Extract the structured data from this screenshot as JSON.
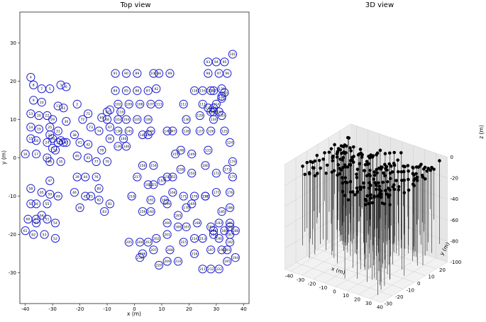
{
  "chart_data": [
    {
      "type": "scatter",
      "title": "Top view",
      "xlabel": "x (m)",
      "ylabel": "y (m)",
      "xlim": [
        -42,
        42
      ],
      "ylim": [
        -38,
        38
      ],
      "xticks": [
        -40,
        -30,
        -20,
        -10,
        0,
        10,
        20,
        30,
        40
      ],
      "yticks": [
        -30,
        -20,
        -10,
        0,
        10,
        20,
        30
      ],
      "marker": "circle-outline",
      "marker_color": "#1f1fd6",
      "points": [
        {
          "id": "1",
          "x": -9,
          "y": 12.5
        },
        {
          "id": "2",
          "x": -21,
          "y": 14
        },
        {
          "id": "3",
          "x": -27,
          "y": 19
        },
        {
          "id": "4",
          "x": -38,
          "y": 21
        },
        {
          "id": "5",
          "x": -31,
          "y": 18
        },
        {
          "id": "6",
          "x": -25,
          "y": 18.5
        },
        {
          "id": "7",
          "x": -34,
          "y": 18
        },
        {
          "id": "8",
          "x": -37,
          "y": 19
        },
        {
          "id": "9",
          "x": -37,
          "y": 15
        },
        {
          "id": "10",
          "x": -34,
          "y": 14.5
        },
        {
          "id": "11",
          "x": -28,
          "y": 13.5
        },
        {
          "id": "12",
          "x": -26,
          "y": 13
        },
        {
          "id": "13",
          "x": -38,
          "y": 11.5
        },
        {
          "id": "14",
          "x": -38,
          "y": 8
        },
        {
          "id": "15",
          "x": -38,
          "y": 5
        },
        {
          "id": "16",
          "x": -40,
          "y": 1
        },
        {
          "id": "17",
          "x": -36,
          "y": 1
        },
        {
          "id": "18",
          "x": -36,
          "y": 4.5
        },
        {
          "id": "19",
          "x": -35,
          "y": 7.5
        },
        {
          "id": "20",
          "x": -35,
          "y": 11
        },
        {
          "id": "21",
          "x": -32,
          "y": 0
        },
        {
          "id": "22",
          "x": -32,
          "y": 11
        },
        {
          "id": "23",
          "x": -31,
          "y": 6
        },
        {
          "id": "24",
          "x": -32,
          "y": 4
        },
        {
          "id": "25",
          "x": -31,
          "y": 8
        },
        {
          "id": "26",
          "x": -31,
          "y": -1
        },
        {
          "id": "27",
          "x": -30,
          "y": 2.5
        },
        {
          "id": "28",
          "x": -30,
          "y": 5
        },
        {
          "id": "29",
          "x": -30,
          "y": 10
        },
        {
          "id": "30",
          "x": -25,
          "y": 9.5
        },
        {
          "id": "31",
          "x": -28,
          "y": 7
        },
        {
          "id": "32",
          "x": -28,
          "y": 4
        },
        {
          "id": "33",
          "x": -29,
          "y": 2
        },
        {
          "id": "34",
          "x": -26,
          "y": 4
        },
        {
          "id": "35",
          "x": -27,
          "y": -1
        },
        {
          "id": "36",
          "x": -27,
          "y": 4.5
        },
        {
          "id": "37",
          "x": -25,
          "y": 4
        },
        {
          "id": "38",
          "x": -22,
          "y": 6
        },
        {
          "id": "39",
          "x": -21,
          "y": -5
        },
        {
          "id": "40",
          "x": -21,
          "y": 0.5
        },
        {
          "id": "41",
          "x": -20,
          "y": 4
        },
        {
          "id": "42",
          "x": -17,
          "y": 3.5
        },
        {
          "id": "43",
          "x": -17,
          "y": 0
        },
        {
          "id": "44",
          "x": -18,
          "y": -5
        },
        {
          "id": "45",
          "x": -18,
          "y": -10
        },
        {
          "id": "46",
          "x": -22,
          "y": -9
        },
        {
          "id": "47",
          "x": -31,
          "y": -6
        },
        {
          "id": "48",
          "x": -20,
          "y": -13
        },
        {
          "id": "49",
          "x": -28,
          "y": -10
        },
        {
          "id": "50",
          "x": -38,
          "y": -12
        },
        {
          "id": "51",
          "x": -32,
          "y": -16
        },
        {
          "id": "52",
          "x": -29,
          "y": -21
        },
        {
          "id": "53",
          "x": -33,
          "y": -20
        },
        {
          "id": "54",
          "x": -29,
          "y": -17
        },
        {
          "id": "55",
          "x": -32,
          "y": -12
        },
        {
          "id": "56",
          "x": -36,
          "y": -12
        },
        {
          "id": "57",
          "x": -36,
          "y": -16
        },
        {
          "id": "58",
          "x": -38,
          "y": -8
        },
        {
          "id": "59",
          "x": -31,
          "y": -9.5
        },
        {
          "id": "60",
          "x": -39,
          "y": -16
        },
        {
          "id": "61",
          "x": -40,
          "y": -19
        },
        {
          "id": "62",
          "x": -37,
          "y": -20
        },
        {
          "id": "63",
          "x": -36,
          "y": -17
        },
        {
          "id": "64",
          "x": -34,
          "y": -15
        },
        {
          "id": "65",
          "x": -34,
          "y": -9
        },
        {
          "id": "66",
          "x": -9,
          "y": 5
        },
        {
          "id": "67",
          "x": -9,
          "y": 8
        },
        {
          "id": "68",
          "x": -10,
          "y": 10
        },
        {
          "id": "69",
          "x": -12,
          "y": 10.5
        },
        {
          "id": "70",
          "x": -10,
          "y": 12
        },
        {
          "id": "71",
          "x": -17,
          "y": 11.5
        },
        {
          "id": "72",
          "x": -19,
          "y": 10
        },
        {
          "id": "73",
          "x": -16,
          "y": 8
        },
        {
          "id": "74",
          "x": -13,
          "y": 7
        },
        {
          "id": "75",
          "x": -16,
          "y": -10
        },
        {
          "id": "76",
          "x": -14,
          "y": -5
        },
        {
          "id": "77",
          "x": -14,
          "y": -1
        },
        {
          "id": "78",
          "x": -12,
          "y": 2
        },
        {
          "id": "79",
          "x": -10,
          "y": -1
        },
        {
          "id": "80",
          "x": -13,
          "y": -8
        },
        {
          "id": "81",
          "x": -9,
          "y": -12
        },
        {
          "id": "82",
          "x": -13,
          "y": -11
        },
        {
          "id": "83",
          "x": -11,
          "y": -14
        },
        {
          "id": "84",
          "x": -7,
          "y": 17.5
        },
        {
          "id": "85",
          "x": -3,
          "y": 17.5
        },
        {
          "id": "86",
          "x": 1,
          "y": 17.5
        },
        {
          "id": "87",
          "x": 5,
          "y": 17.5
        },
        {
          "id": "88",
          "x": 9,
          "y": 22
        },
        {
          "id": "89",
          "x": 1,
          "y": 22
        },
        {
          "id": "90",
          "x": -3,
          "y": 22
        },
        {
          "id": "91",
          "x": -7,
          "y": 22
        },
        {
          "id": "92",
          "x": 8,
          "y": 18
        },
        {
          "id": "93",
          "x": 27,
          "y": 25
        },
        {
          "id": "94",
          "x": 30,
          "y": 25
        },
        {
          "id": "95",
          "x": 33,
          "y": 25
        },
        {
          "id": "96",
          "x": 34,
          "y": 22
        },
        {
          "id": "97",
          "x": 31,
          "y": 22
        },
        {
          "id": "98",
          "x": 27,
          "y": 22
        },
        {
          "id": "99",
          "x": 13,
          "y": 22
        },
        {
          "id": "100",
          "x": 7,
          "y": 22
        },
        {
          "id": "101",
          "x": 36,
          "y": 27
        },
        {
          "id": "102",
          "x": -6,
          "y": 14
        },
        {
          "id": "103",
          "x": -6,
          "y": 10
        },
        {
          "id": "104",
          "x": -3,
          "y": 10
        },
        {
          "id": "105",
          "x": 1,
          "y": 10
        },
        {
          "id": "106",
          "x": 5,
          "y": 10
        },
        {
          "id": "107",
          "x": 6,
          "y": 14
        },
        {
          "id": "108",
          "x": 2,
          "y": 14
        },
        {
          "id": "109",
          "x": -2,
          "y": 14
        },
        {
          "id": "110",
          "x": -5,
          "y": 12
        },
        {
          "id": "111",
          "x": 25,
          "y": 14
        },
        {
          "id": "112",
          "x": 18,
          "y": 14
        },
        {
          "id": "113",
          "x": 9,
          "y": 14
        },
        {
          "id": "114",
          "x": 30,
          "y": 14
        },
        {
          "id": "115",
          "x": 27,
          "y": 13
        },
        {
          "id": "116",
          "x": 25,
          "y": 17.5
        },
        {
          "id": "117",
          "x": 29,
          "y": 17.5
        },
        {
          "id": "118",
          "x": 22,
          "y": 17.5
        },
        {
          "id": "119",
          "x": 28,
          "y": 17.5
        },
        {
          "id": "120",
          "x": 32,
          "y": 18
        },
        {
          "id": "121",
          "x": 32,
          "y": 15.5
        },
        {
          "id": "122",
          "x": 27,
          "y": 2
        },
        {
          "id": "123",
          "x": 32,
          "y": 16
        },
        {
          "id": "124",
          "x": 35,
          "y": 4
        },
        {
          "id": "125",
          "x": 33,
          "y": 7
        },
        {
          "id": "126",
          "x": 28,
          "y": 7
        },
        {
          "id": "127",
          "x": 24,
          "y": 7
        },
        {
          "id": "128",
          "x": 19,
          "y": 7
        },
        {
          "id": "129",
          "x": 24,
          "y": 11
        },
        {
          "id": "130",
          "x": 33,
          "y": 17
        },
        {
          "id": "131",
          "x": 29,
          "y": 13
        },
        {
          "id": "132",
          "x": 31,
          "y": 12
        },
        {
          "id": "133",
          "x": 32,
          "y": 11
        },
        {
          "id": "134",
          "x": 29,
          "y": 10
        },
        {
          "id": "135",
          "x": 29,
          "y": 12
        },
        {
          "id": "136",
          "x": 19,
          "y": 10
        },
        {
          "id": "137",
          "x": 28,
          "y": 12
        },
        {
          "id": "138",
          "x": -6,
          "y": 7
        },
        {
          "id": "139",
          "x": -6,
          "y": 3
        },
        {
          "id": "140",
          "x": -3,
          "y": 3
        },
        {
          "id": "141",
          "x": 3,
          "y": 6
        },
        {
          "id": "142",
          "x": 5,
          "y": 6
        },
        {
          "id": "143",
          "x": 12,
          "y": 7
        },
        {
          "id": "144",
          "x": 6,
          "y": 7
        },
        {
          "id": "145",
          "x": -2,
          "y": 7
        },
        {
          "id": "146",
          "x": -4,
          "y": 5
        },
        {
          "id": "147",
          "x": 14,
          "y": 7
        },
        {
          "id": "148",
          "x": 17,
          "y": 2
        },
        {
          "id": "149",
          "x": 21,
          "y": 1
        },
        {
          "id": "150",
          "x": 21,
          "y": -4
        },
        {
          "id": "151",
          "x": 12,
          "y": -5
        },
        {
          "id": "152",
          "x": 14,
          "y": -5
        },
        {
          "id": "153",
          "x": 10,
          "y": -6
        },
        {
          "id": "154",
          "x": 7,
          "y": -2
        },
        {
          "id": "155",
          "x": 15,
          "y": 1
        },
        {
          "id": "156",
          "x": 3,
          "y": -2
        },
        {
          "id": "157",
          "x": 26,
          "y": -10
        },
        {
          "id": "158",
          "x": 17,
          "y": -3
        },
        {
          "id": "159",
          "x": 3,
          "y": -14
        },
        {
          "id": "160",
          "x": 6,
          "y": -14
        },
        {
          "id": "161",
          "x": 6,
          "y": -11
        },
        {
          "id": "162",
          "x": 11,
          "y": -11
        },
        {
          "id": "163",
          "x": 5,
          "y": -7
        },
        {
          "id": "164",
          "x": 14,
          "y": -9
        },
        {
          "id": "165",
          "x": 16,
          "y": -15
        },
        {
          "id": "166",
          "x": 16,
          "y": -18
        },
        {
          "id": "167",
          "x": 19,
          "y": -18
        },
        {
          "id": "168",
          "x": 23,
          "y": -17
        },
        {
          "id": "169",
          "x": 21,
          "y": -12
        },
        {
          "id": "170",
          "x": 19,
          "y": -13
        },
        {
          "id": "171",
          "x": 18,
          "y": -10
        },
        {
          "id": "172",
          "x": 30,
          "y": -4
        },
        {
          "id": "173",
          "x": 34,
          "y": -3
        },
        {
          "id": "174",
          "x": 36,
          "y": -1
        },
        {
          "id": "175",
          "x": 36,
          "y": -5
        },
        {
          "id": "176",
          "x": 35,
          "y": -9
        },
        {
          "id": "177",
          "x": 30,
          "y": -9
        },
        {
          "id": "178",
          "x": 26,
          "y": -10
        },
        {
          "id": "179",
          "x": 22,
          "y": -10
        },
        {
          "id": "180",
          "x": 26,
          "y": -2
        },
        {
          "id": "181",
          "x": 35,
          "y": -17
        },
        {
          "id": "182",
          "x": 35,
          "y": -18
        },
        {
          "id": "183",
          "x": 31,
          "y": -17
        },
        {
          "id": "184",
          "x": 28,
          "y": -18
        },
        {
          "id": "185",
          "x": 32,
          "y": -14
        },
        {
          "id": "186",
          "x": 35,
          "y": -13
        },
        {
          "id": "187",
          "x": 35,
          "y": -20
        },
        {
          "id": "188",
          "x": 37,
          "y": -19
        },
        {
          "id": "189",
          "x": 33,
          "y": -19
        },
        {
          "id": "190",
          "x": 31,
          "y": -21
        },
        {
          "id": "191",
          "x": 29,
          "y": -20
        },
        {
          "id": "192",
          "x": 35,
          "y": -22
        },
        {
          "id": "193",
          "x": 34,
          "y": -24
        },
        {
          "id": "194",
          "x": 37,
          "y": -26
        },
        {
          "id": "195",
          "x": 34,
          "y": -27
        },
        {
          "id": "196",
          "x": 32,
          "y": -24
        },
        {
          "id": "197",
          "x": 28,
          "y": -24
        },
        {
          "id": "198",
          "x": 29,
          "y": -19
        },
        {
          "id": "199",
          "x": 12,
          "y": -12
        },
        {
          "id": "200",
          "x": 12,
          "y": -17
        },
        {
          "id": "201",
          "x": 12,
          "y": -20
        },
        {
          "id": "202",
          "x": 8,
          "y": -21
        },
        {
          "id": "203",
          "x": 5,
          "y": -22
        },
        {
          "id": "204",
          "x": 2,
          "y": -22
        },
        {
          "id": "205",
          "x": -2,
          "y": -22
        },
        {
          "id": "206",
          "x": 3,
          "y": -25
        },
        {
          "id": "207",
          "x": 7,
          "y": -24
        },
        {
          "id": "208",
          "x": 13,
          "y": -24
        },
        {
          "id": "209",
          "x": 12,
          "y": -27
        },
        {
          "id": "210",
          "x": 16,
          "y": -27
        },
        {
          "id": "211",
          "x": 25,
          "y": -29
        },
        {
          "id": "212",
          "x": 28,
          "y": -29
        },
        {
          "id": "213",
          "x": 25,
          "y": -21
        },
        {
          "id": "214",
          "x": 22,
          "y": -21
        },
        {
          "id": "215",
          "x": 18,
          "y": -22
        },
        {
          "id": "216",
          "x": 22,
          "y": -25
        },
        {
          "id": "217",
          "x": 1,
          "y": -5
        },
        {
          "id": "218",
          "x": -1,
          "y": -10
        },
        {
          "id": "219",
          "x": 2,
          "y": -26
        },
        {
          "id": "220",
          "x": 9,
          "y": -28
        },
        {
          "id": "221",
          "x": 7,
          "y": -7
        },
        {
          "id": "222",
          "x": 31,
          "y": -29
        }
      ]
    },
    {
      "type": "scatter3d",
      "title": "3D view",
      "xlabel": "x (m)",
      "ylabel": "y (m)",
      "zlabel": "z (m)",
      "xlim": [
        -45,
        40
      ],
      "ylim": [
        -30,
        30
      ],
      "zlim": [
        -100,
        0
      ],
      "xticks": [
        -40,
        -30,
        -20,
        -10,
        0,
        10,
        20,
        30,
        40
      ],
      "yticks": [
        -30,
        -20,
        -10,
        0,
        10,
        20
      ],
      "zticks": [
        0,
        -20,
        -40,
        -60,
        -80,
        -100
      ],
      "marker": "filled-dot-with-vertical-stem",
      "marker_color": "#000000",
      "grid": true
    }
  ]
}
